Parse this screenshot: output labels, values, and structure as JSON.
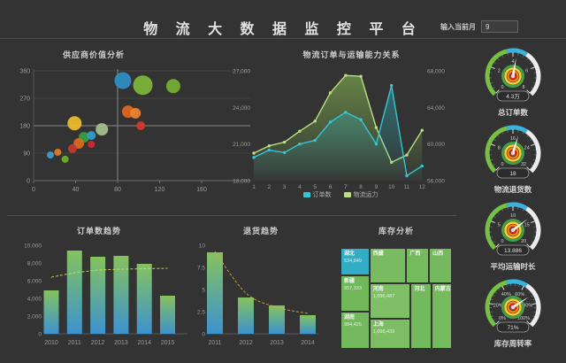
{
  "header": {
    "title": "物 流 大 数 据 监 控 平 台",
    "month_label": "输入当前月",
    "month_value": "9"
  },
  "colors": {
    "background": "#333333",
    "teal_line": "#36c5d3",
    "green_line": "#b9e07f",
    "bar_top": "#85c25e",
    "bar_bottom": "#3d92cf",
    "trend_yellow": "#d6dd4a",
    "trend_orange": "#e0a23e",
    "gauge_green": "#76c043",
    "gauge_cyan": "#38b3dc",
    "gauge_white": "#ececec",
    "treemap_green": "#74b95d",
    "treemap_teal": "#31aec6"
  },
  "chart_data": [
    {
      "id": "bubble",
      "type": "scatter",
      "title": "供应商价值分析",
      "x_ticks": [
        0,
        40,
        80,
        120,
        160
      ],
      "y_ticks": [
        0,
        90,
        180,
        270,
        360
      ],
      "xlim": [
        0,
        160
      ],
      "ylim": [
        0,
        360
      ],
      "quadrant_x": 80,
      "quadrant_y": 180,
      "points": [
        {
          "x": 85,
          "y": 328,
          "r": 9.5,
          "color": "#2f8fc6"
        },
        {
          "x": 104,
          "y": 313,
          "r": 11,
          "color": "#7fb73a"
        },
        {
          "x": 133,
          "y": 310,
          "r": 8,
          "color": "#75b034"
        },
        {
          "x": 90,
          "y": 226,
          "r": 7,
          "color": "#e2671f"
        },
        {
          "x": 97,
          "y": 221,
          "r": 6,
          "color": "#ef8330"
        },
        {
          "x": 102,
          "y": 180,
          "r": 5,
          "color": "#d7382a"
        },
        {
          "x": 39,
          "y": 188,
          "r": 8,
          "color": "#edbd2e"
        },
        {
          "x": 65,
          "y": 168,
          "r": 7,
          "color": "#a6c28e"
        },
        {
          "x": 48,
          "y": 142,
          "r": 6,
          "color": "#35a03f"
        },
        {
          "x": 55,
          "y": 148,
          "r": 5,
          "color": "#2f9fd0"
        },
        {
          "x": 43,
          "y": 122,
          "r": 6,
          "color": "#df6a20"
        },
        {
          "x": 55,
          "y": 119,
          "r": 4,
          "color": "#cd2a33"
        },
        {
          "x": 37,
          "y": 105,
          "r": 5,
          "color": "#c5372e"
        },
        {
          "x": 23,
          "y": 93,
          "r": 4,
          "color": "#e07b24"
        },
        {
          "x": 16,
          "y": 84,
          "r": 4,
          "color": "#3c9dd4"
        },
        {
          "x": 30,
          "y": 70,
          "r": 4,
          "color": "#6db32a"
        }
      ]
    },
    {
      "id": "lines",
      "type": "line",
      "title": "物流订单与运输能力关系",
      "x": [
        1,
        2,
        3,
        4,
        5,
        6,
        7,
        8,
        9,
        10,
        11,
        12
      ],
      "left_ticks": [
        "18,000",
        "21,000",
        "24,000",
        "27,000"
      ],
      "right_ticks": [
        "56,000",
        "60,000",
        "64,000",
        "68,000"
      ],
      "left_range": [
        18000,
        27000
      ],
      "right_range": [
        56000,
        68000
      ],
      "legend_position": "bottom",
      "series": [
        {
          "name": "物流运力",
          "axis": "right",
          "color": "#b9e07f",
          "values": [
            59000,
            59800,
            60200,
            61400,
            62500,
            65600,
            67500,
            67400,
            61800,
            58000,
            58800,
            61500
          ]
        },
        {
          "name": "订单数",
          "axis": "left",
          "color": "#36c5d3",
          "values": [
            19900,
            20500,
            20300,
            21000,
            21300,
            22800,
            23600,
            23000,
            21000,
            25800,
            18400,
            19200
          ]
        }
      ]
    },
    {
      "id": "orders-trend",
      "type": "bar",
      "title": "订单数趋势",
      "categories": [
        "2010",
        "2011",
        "2012",
        "2013",
        "2014",
        "2015"
      ],
      "values": [
        4900,
        9400,
        8700,
        8800,
        7900,
        4300
      ],
      "trend": [
        6400,
        6900,
        7200,
        7300,
        7350,
        7400
      ],
      "y_ticks": [
        "0",
        "2,000",
        "4,000",
        "6,000",
        "8,000",
        "10,000"
      ],
      "ylim": [
        0,
        10000
      ]
    },
    {
      "id": "returns-trend",
      "type": "bar",
      "title": "退货趋势",
      "categories": [
        "2011",
        "2012",
        "2013",
        "2014"
      ],
      "values": [
        9.2,
        4.1,
        3.2,
        2.1
      ],
      "trend": [
        9.3,
        4.6,
        3.0,
        2.3
      ],
      "y_ticks": [
        "0",
        "2.5",
        "5",
        "7.5",
        "10"
      ],
      "ylim": [
        0,
        10
      ]
    },
    {
      "id": "treemap",
      "type": "treemap",
      "title": "库存分析",
      "blocks": [
        {
          "name": "湖北",
          "value": "534,849",
          "color": "#31aec6",
          "x": 0,
          "y": 0,
          "w": 26,
          "h": 27
        },
        {
          "name": "新疆",
          "value": "957,333",
          "color": "#72b75a",
          "x": 0,
          "y": 27,
          "w": 26,
          "h": 36
        },
        {
          "name": "湖南",
          "value": "984,425",
          "color": "#74b95d",
          "x": 0,
          "y": 63,
          "w": 26,
          "h": 37
        },
        {
          "name": "西藏",
          "value": "",
          "color": "#79bb60",
          "x": 26,
          "y": 0,
          "w": 33,
          "h": 35
        },
        {
          "name": "广西",
          "value": "",
          "color": "#76ba5e",
          "x": 59,
          "y": 0,
          "w": 20.5,
          "h": 35
        },
        {
          "name": "山西",
          "value": "",
          "color": "#74b95d",
          "x": 79.5,
          "y": 0,
          "w": 20.5,
          "h": 35
        },
        {
          "name": "河南",
          "value": "1,096,487",
          "color": "#7fbf66",
          "x": 26,
          "y": 35,
          "w": 37,
          "h": 35
        },
        {
          "name": "上海",
          "value": "1,096,433",
          "color": "#7dbe64",
          "x": 26,
          "y": 70,
          "w": 37,
          "h": 30
        },
        {
          "name": "河北",
          "value": "",
          "color": "#74b95d",
          "x": 63,
          "y": 35,
          "w": 18.5,
          "h": 65
        },
        {
          "name": "内蒙古",
          "value": "",
          "color": "#76ba5e",
          "x": 81.5,
          "y": 35,
          "w": 18.5,
          "h": 65
        }
      ]
    }
  ],
  "gauges": [
    {
      "label": "总订单数",
      "value": "4.3万",
      "ticks": [
        "0",
        "2",
        "4",
        "6",
        "8"
      ],
      "percent": 0.5375
    },
    {
      "label": "物流退货数",
      "value": "18",
      "ticks": [
        "0",
        "8",
        "16",
        "24",
        "32"
      ],
      "percent": 0.5625
    },
    {
      "label": "平均运输时长",
      "value": "13.886",
      "ticks": [
        "0",
        "5",
        "10",
        "15",
        "20"
      ],
      "percent": 0.6943
    },
    {
      "label": "库存周转率",
      "value": "71%",
      "ticks": [
        "0%",
        "20%",
        "40%",
        "60%",
        "80%",
        "100%"
      ],
      "percent": 0.71
    }
  ]
}
